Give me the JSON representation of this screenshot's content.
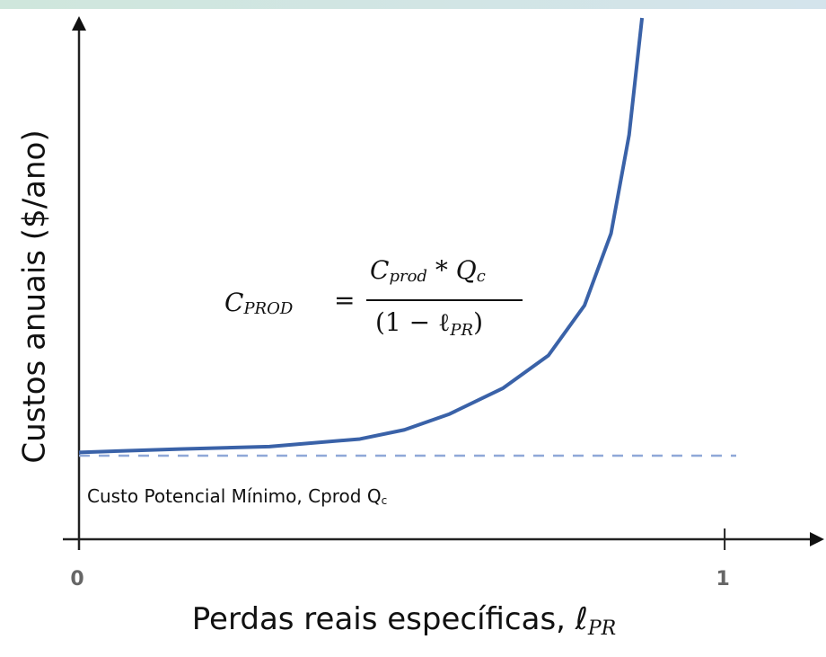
{
  "chart_data": {
    "type": "line",
    "x_label": "Perdas reais específicas, ℓ",
    "x_label_sub": "PR",
    "y_label": "Custos anuais ($/ano)",
    "formula": {
      "lhs": "C",
      "lhs_sub": "PROD",
      "eq": "=",
      "num": "C",
      "num_sub": "prod",
      "num_mid": " * Q",
      "num_sub2": "c",
      "den": "(1 − ℓ",
      "den_sub": "PR",
      "den_end": ")"
    },
    "reference_line": {
      "value": 1,
      "label": "Custo Potencial Mínimo, Cprod Q",
      "label_sub": "c",
      "color": "#8fa8d8"
    },
    "x": [
      0,
      0.156,
      0.295,
      0.435,
      0.504,
      0.574,
      0.657,
      0.727,
      0.783,
      0.824,
      0.852,
      0.872
    ],
    "series": [
      {
        "color": "#3a62a8",
        "values": [
          1.04,
          1.08,
          1.11,
          1.2,
          1.31,
          1.5,
          1.81,
          2.2,
          2.8,
          3.66,
          4.84,
          6.24
        ]
      }
    ],
    "xlim": [
      -0.025,
      1.15
    ],
    "xticks": [
      0,
      1
    ],
    "ylim": [
      0,
      6.24
    ]
  }
}
